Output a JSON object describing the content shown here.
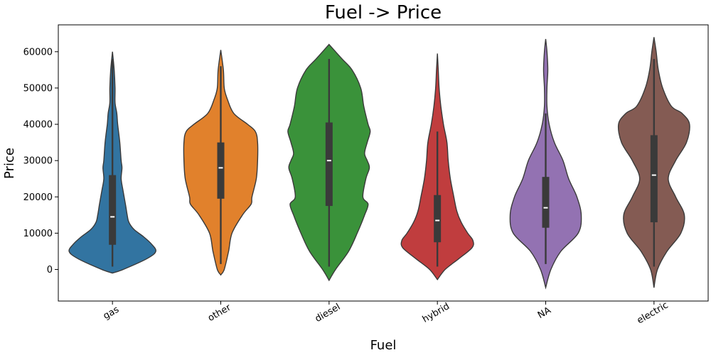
{
  "chart_data": {
    "type": "violin",
    "title": "Fuel -> Price",
    "xlabel": "Fuel",
    "ylabel": "Price",
    "ylim": [
      -8700,
      67400
    ],
    "yticks": [
      0,
      10000,
      20000,
      30000,
      40000,
      50000,
      60000
    ],
    "categories": [
      "gas",
      "other",
      "diesel",
      "hybrid",
      "NA",
      "electric"
    ],
    "colors": [
      "#3274a1",
      "#e1812c",
      "#3a923a",
      "#c03d3e",
      "#9372b2",
      "#845b53"
    ],
    "series": [
      {
        "category": "gas",
        "density_values": [
          -1000,
          0,
          3000,
          5000,
          7000,
          9000,
          11000,
          13000,
          15000,
          18000,
          22000,
          25000,
          28000,
          30000,
          35000,
          40000,
          43000,
          46000,
          50000,
          55000,
          60000
        ],
        "density_widths": [
          0.0,
          0.25,
          0.8,
          1.0,
          0.9,
          0.72,
          0.5,
          0.38,
          0.34,
          0.3,
          0.24,
          0.2,
          0.22,
          0.2,
          0.17,
          0.12,
          0.1,
          0.06,
          0.06,
          0.04,
          0.0
        ],
        "whisker": [
          800,
          58000
        ],
        "q1": 6800,
        "median": 14500,
        "q3": 26000
      },
      {
        "category": "other",
        "density_values": [
          -1500,
          0,
          5000,
          10000,
          15000,
          18000,
          20000,
          25000,
          30000,
          35000,
          38000,
          40000,
          43000,
          47000,
          50000,
          55000,
          60500
        ],
        "density_widths": [
          0.0,
          0.08,
          0.18,
          0.26,
          0.5,
          0.7,
          0.72,
          0.82,
          0.85,
          0.85,
          0.8,
          0.62,
          0.3,
          0.15,
          0.08,
          0.06,
          0.0
        ],
        "whisker": [
          1500,
          56000
        ],
        "q1": 19500,
        "median": 28000,
        "q3": 35000
      },
      {
        "category": "diesel",
        "density_values": [
          -3000,
          0,
          5000,
          10000,
          15000,
          18000,
          20000,
          25000,
          28000,
          30000,
          32000,
          35000,
          38000,
          40000,
          45000,
          50000,
          55000,
          58000,
          62000
        ],
        "density_widths": [
          0.0,
          0.15,
          0.45,
          0.65,
          0.82,
          0.9,
          0.78,
          0.85,
          0.93,
          0.88,
          0.82,
          0.88,
          0.95,
          0.9,
          0.8,
          0.73,
          0.53,
          0.3,
          0.0
        ],
        "whisker": [
          800,
          58000
        ],
        "q1": 17500,
        "median": 30000,
        "q3": 40500
      },
      {
        "category": "hybrid",
        "density_values": [
          -2800,
          0,
          3000,
          6000,
          8000,
          10000,
          13000,
          16000,
          20000,
          25000,
          30000,
          35000,
          40000,
          45000,
          50000,
          55000,
          59500
        ],
        "density_widths": [
          0.0,
          0.18,
          0.5,
          0.8,
          0.82,
          0.7,
          0.55,
          0.45,
          0.38,
          0.3,
          0.25,
          0.22,
          0.14,
          0.08,
          0.04,
          0.02,
          0.0
        ],
        "whisker": [
          800,
          38000
        ],
        "q1": 7500,
        "median": 13500,
        "q3": 20500
      },
      {
        "category": "NA",
        "density_values": [
          -5000,
          0,
          5000,
          10000,
          15000,
          20000,
          25000,
          30000,
          35000,
          40000,
          45000,
          50000,
          55000,
          60000,
          63500
        ],
        "density_widths": [
          0.0,
          0.12,
          0.35,
          0.75,
          0.82,
          0.72,
          0.53,
          0.4,
          0.2,
          0.08,
          0.03,
          0.03,
          0.05,
          0.03,
          0.0
        ],
        "whisker": [
          1500,
          43000
        ],
        "q1": 11500,
        "median": 17000,
        "q3": 25500
      },
      {
        "category": "electric",
        "density_values": [
          -5000,
          0,
          5000,
          10000,
          15000,
          20000,
          25000,
          30000,
          35000,
          40000,
          43000,
          45000,
          50000,
          55000,
          60000,
          64000
        ],
        "density_widths": [
          0.0,
          0.08,
          0.3,
          0.62,
          0.7,
          0.5,
          0.33,
          0.5,
          0.75,
          0.82,
          0.65,
          0.4,
          0.2,
          0.1,
          0.05,
          0.0
        ],
        "whisker": [
          800,
          58000
        ],
        "q1": 13000,
        "median": 26000,
        "q3": 37000
      }
    ]
  }
}
